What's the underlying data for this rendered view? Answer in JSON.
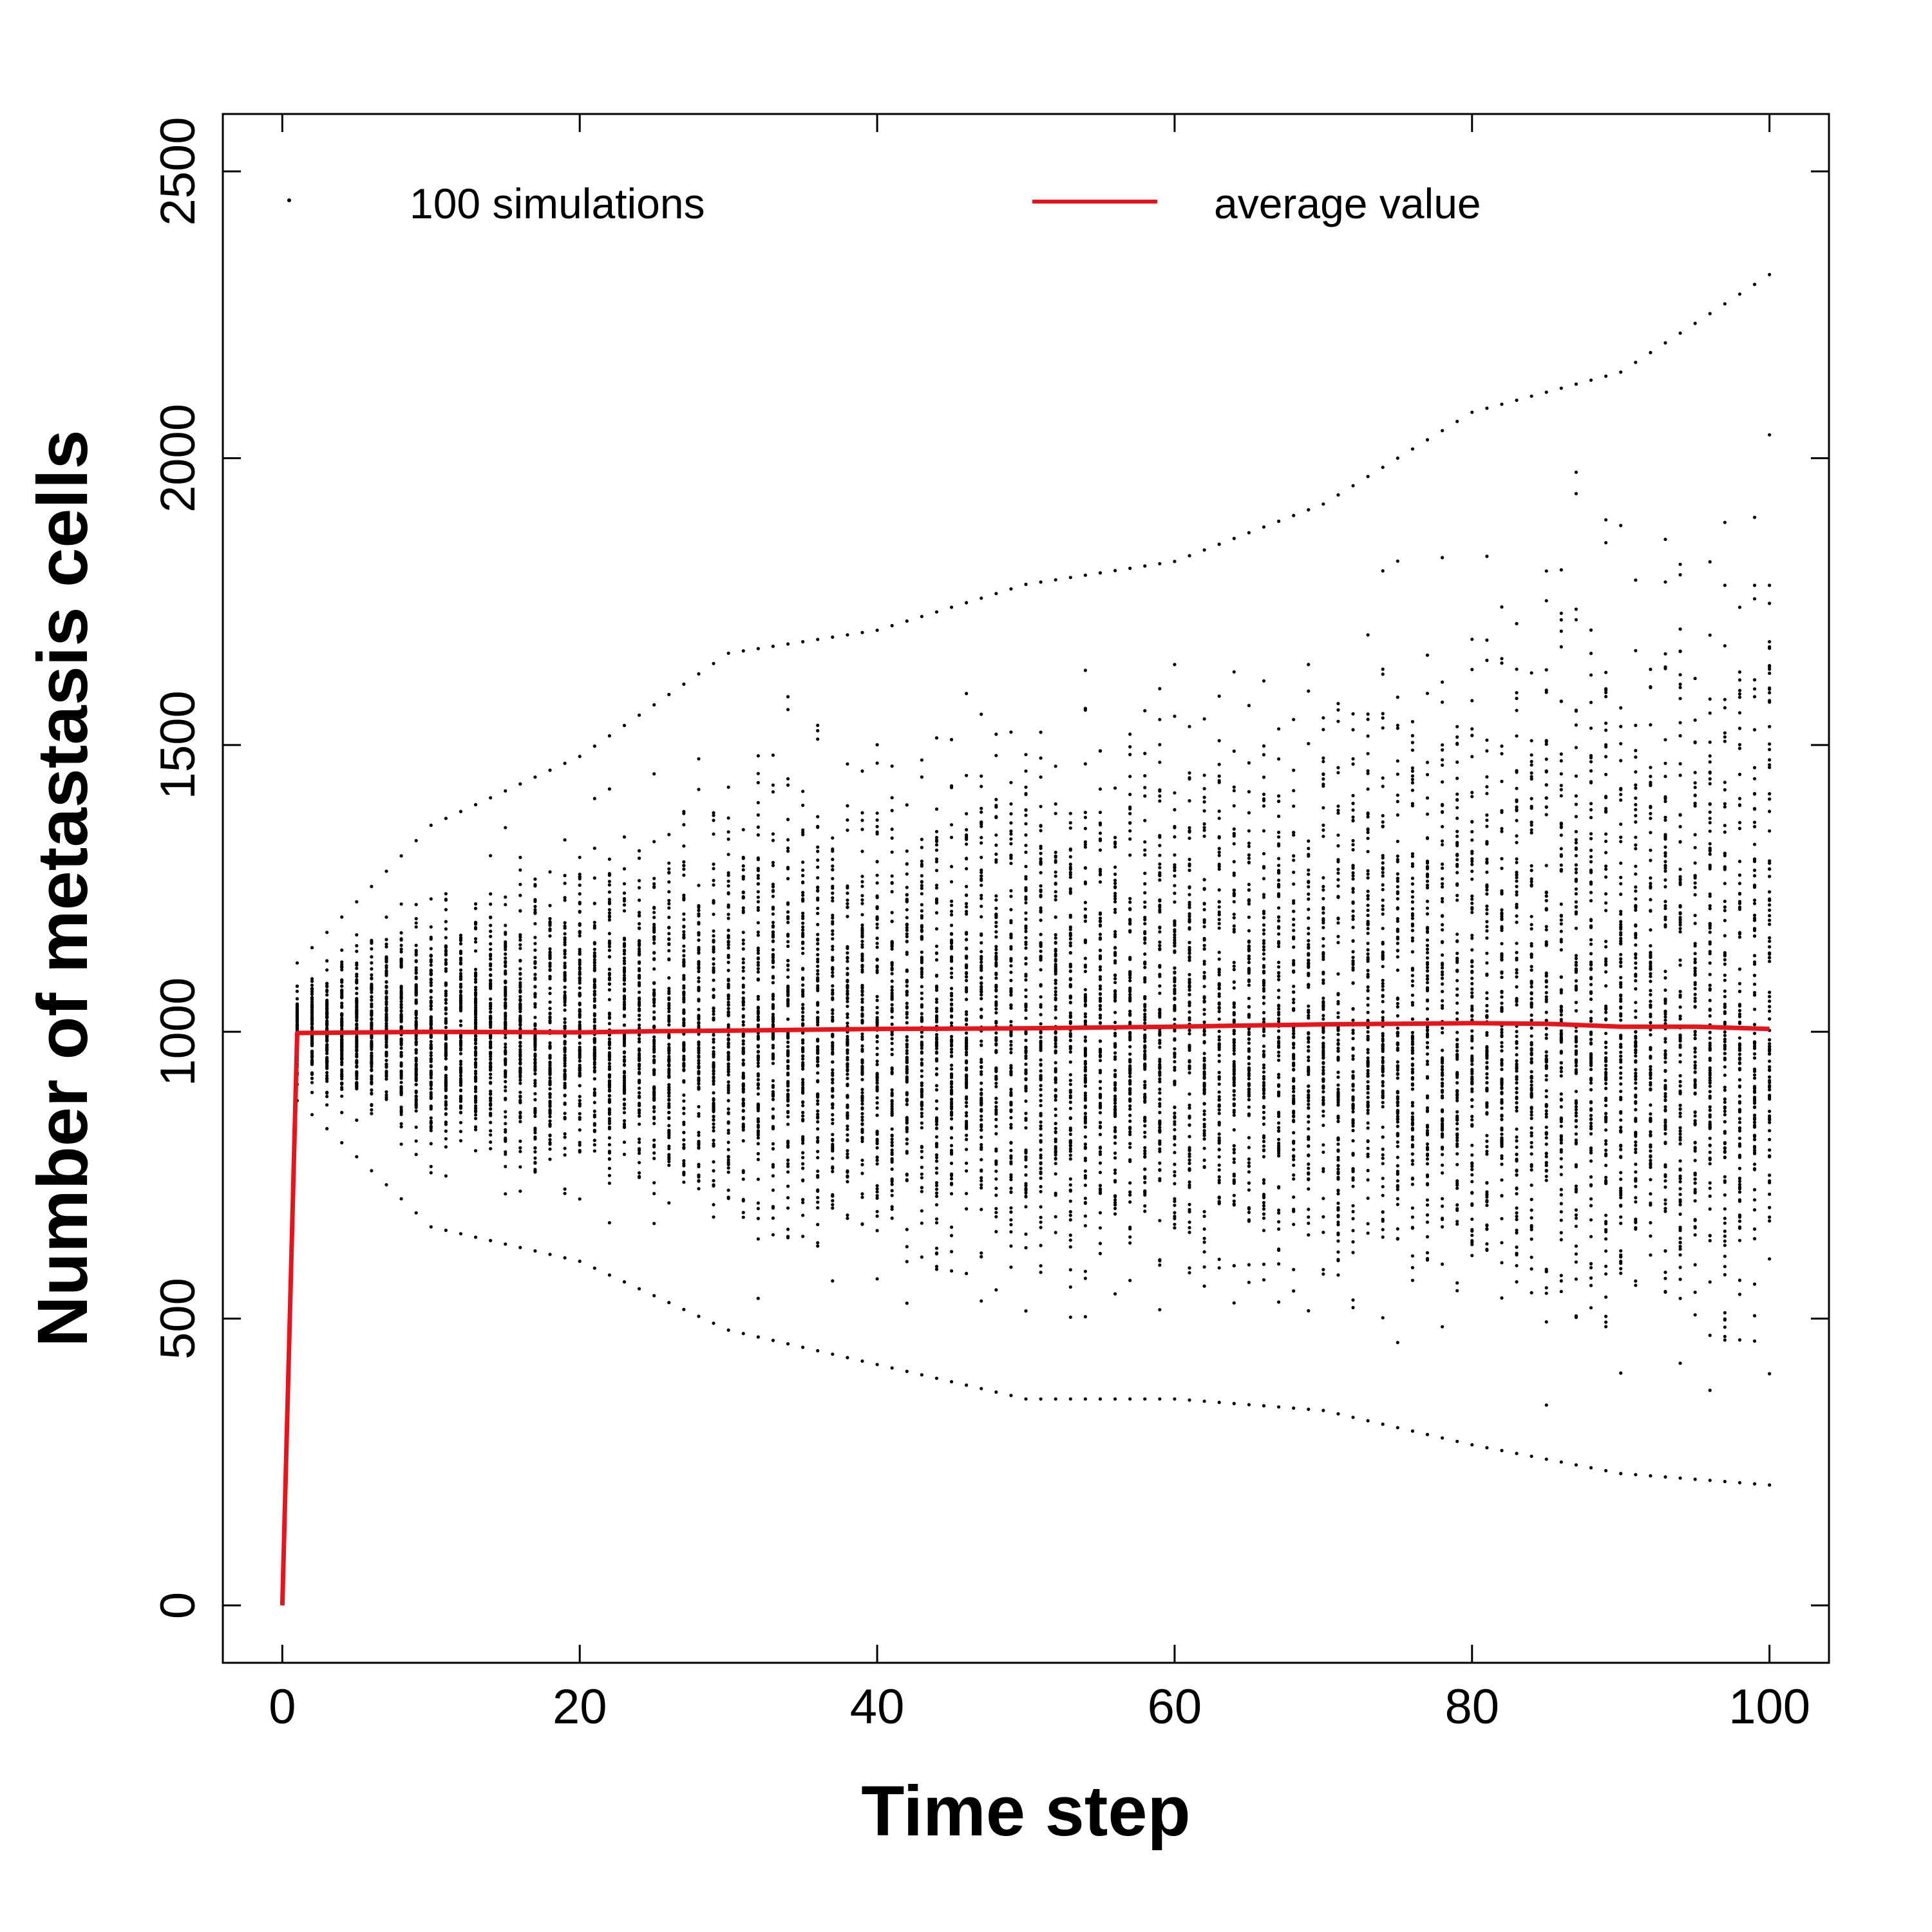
{
  "chart_data": {
    "type": "scatter",
    "title": "",
    "xlabel": "Time step",
    "ylabel": "Number of metastasis cells",
    "xlim": [
      -4,
      104
    ],
    "ylim": [
      -100,
      2600
    ],
    "x_ticks": [
      0,
      20,
      40,
      60,
      80,
      100
    ],
    "y_ticks": [
      0,
      500,
      1000,
      1500,
      2000,
      2500
    ],
    "x_tick_labels": [
      "0",
      "20",
      "40",
      "60",
      "80",
      "100"
    ],
    "y_tick_labels": [
      "0",
      "500",
      "1000",
      "1500",
      "2000",
      "2500"
    ],
    "grid": false,
    "legend_position": "top",
    "legend": [
      {
        "label": "100 simulations",
        "marker": "point",
        "color": "#000000"
      },
      {
        "label": "average value",
        "marker": "line",
        "color": "#e8141b"
      }
    ],
    "series": [
      {
        "name": "100 simulations",
        "style": "points",
        "color": "#000000",
        "simulations_per_step": 100,
        "x_start": 1,
        "x_end": 100,
        "center_value": 1000,
        "upper_envelope_anchors": {
          "x": [
            1,
            10,
            20,
            30,
            40,
            50,
            60,
            70,
            80,
            90,
            100
          ],
          "y": [
            1120,
            1360,
            1480,
            1660,
            1700,
            1780,
            1820,
            1920,
            2080,
            2150,
            2320
          ]
        },
        "lower_envelope_anchors": {
          "x": [
            1,
            10,
            20,
            30,
            40,
            50,
            60,
            70,
            80,
            90,
            100
          ],
          "y": [
            880,
            660,
            600,
            480,
            420,
            360,
            360,
            340,
            280,
            230,
            210
          ]
        }
      },
      {
        "name": "average value",
        "style": "line",
        "color": "#e8141b",
        "x": [
          0,
          1,
          10,
          20,
          25,
          30,
          40,
          50,
          60,
          70,
          75,
          80,
          85,
          90,
          95,
          100
        ],
        "y": [
          0,
          998,
          1000,
          999,
          1001,
          1002,
          1005,
          1006,
          1009,
          1013,
          1014,
          1015,
          1014,
          1009,
          1009,
          1005
        ]
      }
    ]
  }
}
